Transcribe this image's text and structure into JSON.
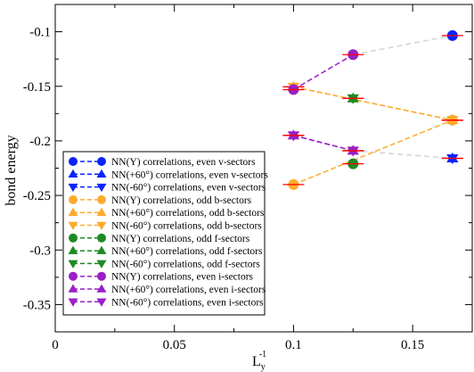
{
  "chart_data": {
    "type": "scatter",
    "xlabel": "L",
    "xlabel_sub": "y",
    "xlabel_sup": "-1",
    "ylabel": "bond energy",
    "xlim": [
      0,
      0.175
    ],
    "ylim": [
      -0.375,
      -0.075
    ],
    "xticks": [
      0,
      0.05,
      0.1,
      0.15
    ],
    "xtick_labels": [
      "0",
      "0.05",
      "0.1",
      "0.15"
    ],
    "yticks": [
      -0.35,
      -0.3,
      -0.25,
      -0.2,
      -0.15,
      -0.1
    ],
    "ytick_labels": [
      "-0.35",
      "-0.3",
      "-0.25",
      "-0.2",
      "-0.15",
      "-0.1"
    ],
    "grid": false,
    "legend_position": "bottom-left",
    "series": [
      {
        "name": "NN(Y) correlations, even v-sectors",
        "color": "#0b24fb",
        "marker": "circle",
        "x": [
          0.1667
        ],
        "y": [
          -0.1035
        ]
      },
      {
        "name": "NN(+60°) correlations, even v-sectors",
        "color": "#0b24fb",
        "marker": "triangle-up",
        "x": [
          0.1667
        ],
        "y": [
          -0.216
        ]
      },
      {
        "name": "NN(-60°) correlations, even v-sectors",
        "color": "#0b24fb",
        "marker": "triangle-down",
        "x": [
          0.1667
        ],
        "y": [
          -0.216
        ]
      },
      {
        "name": "NN(Y) correlations, odd b-sectors",
        "color": "#fdab2e",
        "marker": "circle",
        "x": [
          0.1,
          0.1667
        ],
        "y": [
          -0.24,
          -0.181
        ]
      },
      {
        "name": "NN(+60°) correlations, odd b-sectors",
        "color": "#fdab2e",
        "marker": "triangle-up",
        "x": [
          0.1,
          0.1667
        ],
        "y": [
          -0.1505,
          -0.181
        ]
      },
      {
        "name": "NN(-60°) correlations, odd b-sectors",
        "color": "#fdab2e",
        "marker": "triangle-down",
        "x": [
          0.1,
          0.1667
        ],
        "y": [
          -0.1505,
          -0.181
        ]
      },
      {
        "name": "NN(Y) correlations, odd f-sectors",
        "color": "#1d8a24",
        "marker": "circle",
        "x": [
          0.125
        ],
        "y": [
          -0.221
        ]
      },
      {
        "name": "NN(+60°) correlations, odd f-sectors",
        "color": "#1d8a24",
        "marker": "triangle-up",
        "x": [
          0.125
        ],
        "y": [
          -0.161
        ]
      },
      {
        "name": "NN(-60°) correlations, odd f-sectors",
        "color": "#1d8a24",
        "marker": "triangle-down",
        "x": [
          0.125
        ],
        "y": [
          -0.161
        ]
      },
      {
        "name": "NN(Y) correlations, even i-sectors",
        "color": "#9a1fc6",
        "marker": "circle",
        "x": [
          0.1,
          0.125
        ],
        "y": [
          -0.153,
          -0.121
        ]
      },
      {
        "name": "NN(+60°) correlations, even i-sectors",
        "color": "#9a1fc6",
        "marker": "triangle-up",
        "x": [
          0.1,
          0.125
        ],
        "y": [
          -0.195,
          -0.209
        ]
      },
      {
        "name": "NN(-60°) correlations, even i-sectors",
        "color": "#9a1fc6",
        "marker": "triangle-down",
        "x": [
          0.1,
          0.125
        ],
        "y": [
          -0.195,
          -0.209
        ]
      }
    ],
    "grey_links": [
      {
        "x": [
          0.125,
          0.1667
        ],
        "y": [
          -0.121,
          -0.1035
        ]
      },
      {
        "x": [
          0.125,
          0.1667
        ],
        "y": [
          -0.209,
          -0.216
        ]
      }
    ],
    "colors": {
      "blue": "#0b24fb",
      "orange": "#fdab2e",
      "green": "#1d8a24",
      "purple": "#9a1fc6",
      "grey_link": "#d3d3d3",
      "error_bar": "#ff0000"
    }
  }
}
